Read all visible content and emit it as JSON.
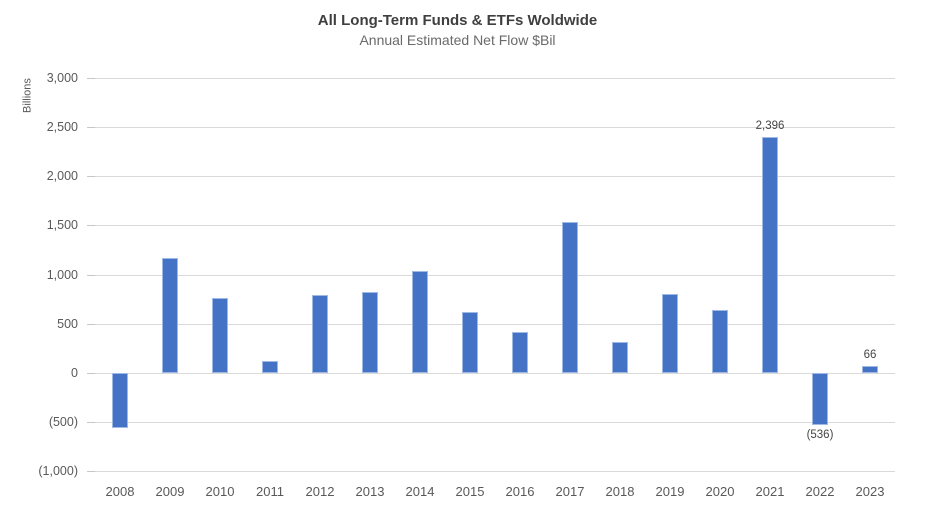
{
  "chart_data": {
    "type": "bar",
    "title": "All Long-Term Funds & ETFs Woldwide",
    "subtitle": "Annual Estimated Net Flow $Bil",
    "ylabel": "Billions",
    "xlabel": "",
    "categories": [
      "2008",
      "2009",
      "2010",
      "2011",
      "2012",
      "2013",
      "2014",
      "2015",
      "2016",
      "2017",
      "2018",
      "2019",
      "2020",
      "2021",
      "2022",
      "2023"
    ],
    "values": [
      -565,
      1165,
      765,
      120,
      790,
      825,
      1040,
      620,
      410,
      1535,
      315,
      800,
      640,
      2396,
      -536,
      66
    ],
    "ylim": [
      -1000,
      3000
    ],
    "grid": true,
    "legend": "none",
    "bar_color": "#4472c4",
    "gridline_color": "#d9d9d9",
    "y_ticks": [
      {
        "value": 3000,
        "label": "3,000"
      },
      {
        "value": 2500,
        "label": "2,500"
      },
      {
        "value": 2000,
        "label": "2,000"
      },
      {
        "value": 1500,
        "label": "1,500"
      },
      {
        "value": 1000,
        "label": "1,000"
      },
      {
        "value": 500,
        "label": "500"
      },
      {
        "value": 0,
        "label": "0"
      },
      {
        "value": -500,
        "label": "(500)"
      },
      {
        "value": -1000,
        "label": "(1,000)"
      }
    ],
    "annotations": [
      {
        "category": "2021",
        "text": "2,396",
        "position": "above"
      },
      {
        "category": "2022",
        "text": "(536)",
        "position": "below"
      },
      {
        "category": "2023",
        "text": "66",
        "position": "above"
      }
    ]
  }
}
